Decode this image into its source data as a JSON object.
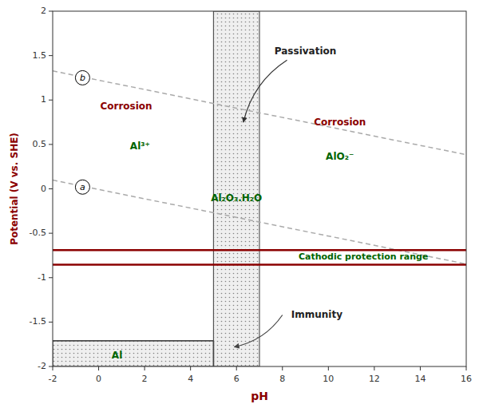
{
  "chart_data": {
    "type": "line",
    "xlabel": "pH",
    "ylabel": "Potential (V vs. SHE)",
    "axis_label_color": "#8B0000",
    "xlim": [
      -2,
      16
    ],
    "ylim": [
      -2,
      2
    ],
    "xticks": [
      -2,
      0,
      2,
      4,
      6,
      8,
      10,
      12,
      14,
      16
    ],
    "yticks": [
      -2,
      -1.5,
      -1,
      -0.5,
      0,
      0.5,
      1,
      1.5,
      2
    ],
    "grid": false,
    "series": [
      {
        "x": [
          -2,
          16
        ],
        "values": [
          0.098,
          -0.846
        ],
        "color": "#aaaaaa",
        "line_style": "dashed"
      },
      {
        "x": [
          -2,
          16
        ],
        "values": [
          1.328,
          0.384
        ],
        "color": "#aaaaaa",
        "line_style": "dashed"
      },
      {
        "x": [
          -2,
          5.0
        ],
        "values": [
          -1.71,
          -1.71
        ],
        "color": "#444444",
        "line_style": "solid"
      },
      {
        "x": [
          5.0,
          5.0
        ],
        "values": [
          -1.71,
          -2.0
        ],
        "color": "#444444",
        "line_style": "solid"
      }
    ],
    "hlines": [
      {
        "value": -0.69,
        "color": "#8B0000"
      },
      {
        "value": -0.855,
        "color": "#8B0000"
      }
    ],
    "hline_label": {
      "text": "Cathodic protection range",
      "x": 8.7,
      "y": -0.76,
      "color": "#006400"
    },
    "regions": [
      {
        "x": 5.0,
        "y": -2.0,
        "width": 2.0,
        "height": 4.0,
        "color": "#e8e8e8",
        "edge_color": "#555555"
      },
      {
        "x": -2.0,
        "y": -2.0,
        "width": 7.0,
        "height": 0.29,
        "color": "#e8e8e8",
        "edge_color": "#555555"
      }
    ],
    "line_tags": [
      {
        "text": "a",
        "x": -0.7,
        "y": 0.02
      },
      {
        "text": "b",
        "x": -0.7,
        "y": 1.25
      }
    ],
    "annotations": [
      {
        "text": "Corrosion",
        "x": 1.2,
        "y": 0.93,
        "color": "#8B0000"
      },
      {
        "text": "Corrosion",
        "x": 10.5,
        "y": 0.75,
        "color": "#8B0000"
      },
      {
        "text": "Al³⁺",
        "x": 1.8,
        "y": 0.48,
        "color": "#006400"
      },
      {
        "text": "AlO₂⁻",
        "x": 10.5,
        "y": 0.36,
        "color": "#006400"
      },
      {
        "text": "Al₂O₃.H₂O",
        "x": 6.0,
        "y": -0.1,
        "color": "#006400"
      },
      {
        "text": "Al",
        "x": 0.8,
        "y": -1.87,
        "color": "#006400"
      },
      {
        "text": "Passivation",
        "x": 9.0,
        "y": 1.55,
        "color": "#222222"
      },
      {
        "text": "Immunity",
        "x": 9.5,
        "y": -1.42,
        "color": "#222222"
      }
    ],
    "arrows": [
      {
        "from": [
          8.2,
          1.45
        ],
        "to": [
          6.3,
          0.75
        ],
        "color": "#333333"
      },
      {
        "from": [
          8.0,
          -1.42
        ],
        "to": [
          5.9,
          -1.78
        ],
        "color": "#444444"
      }
    ]
  }
}
